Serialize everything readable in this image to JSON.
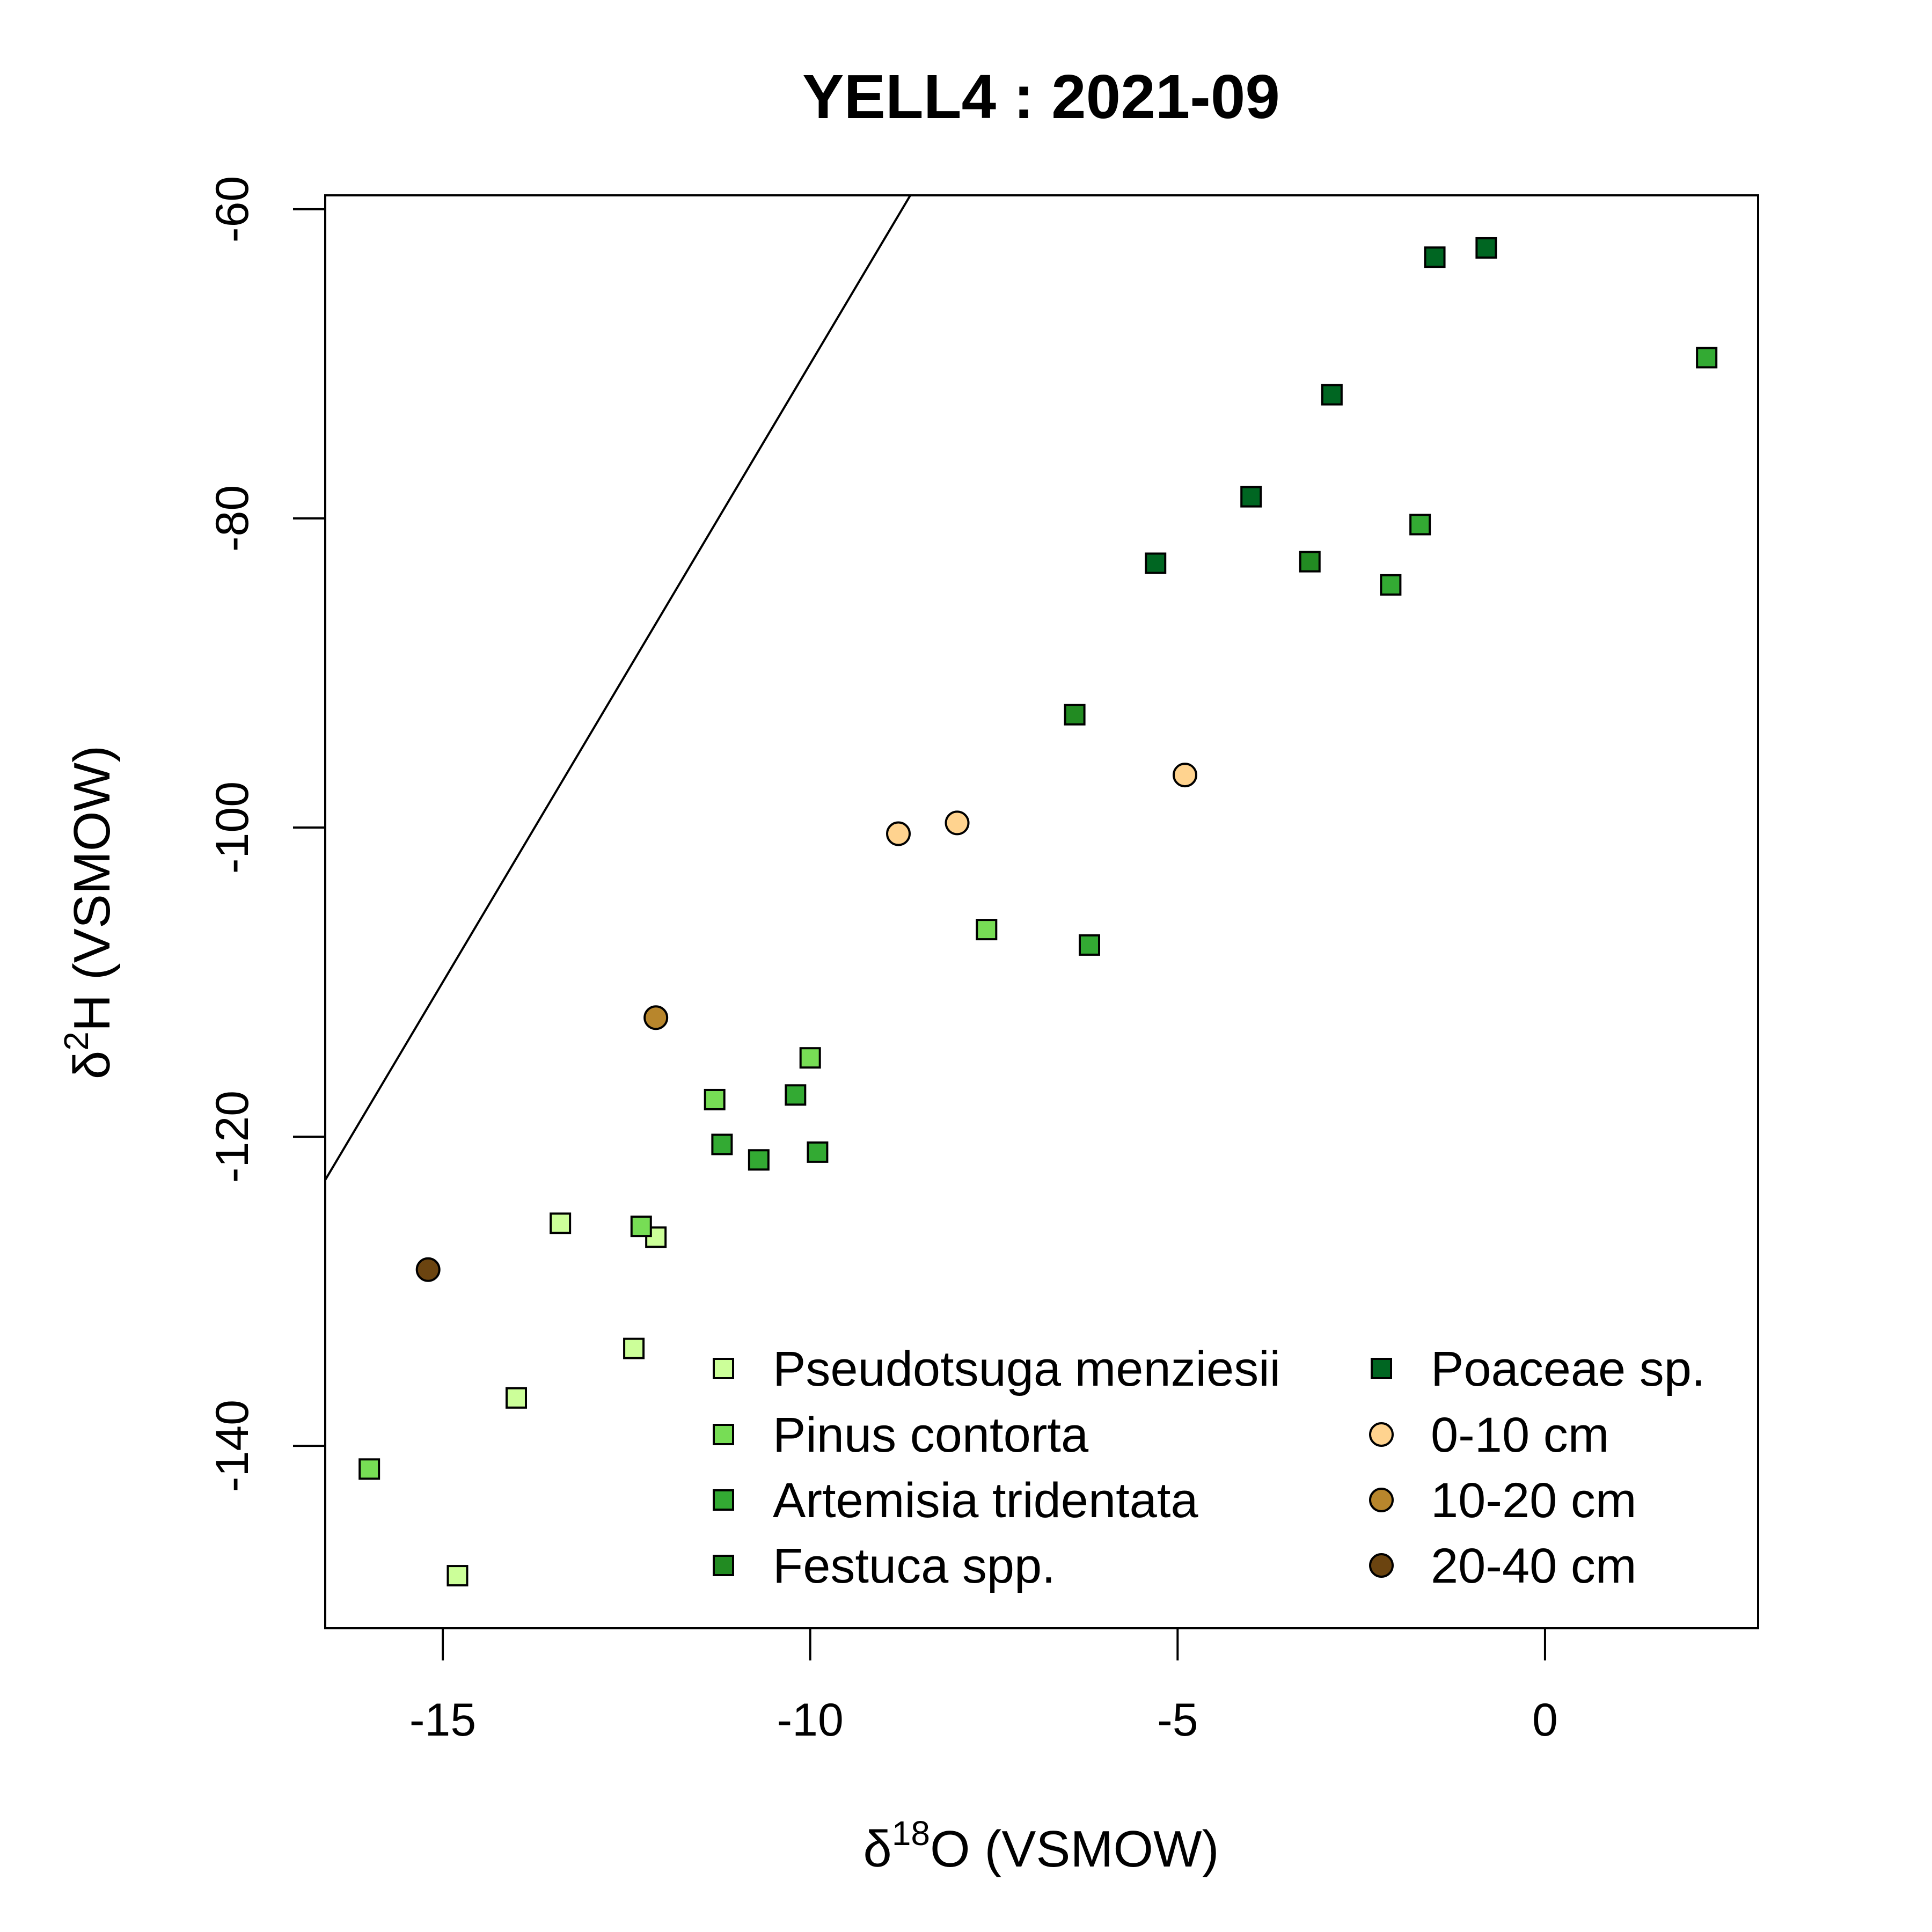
{
  "chart_data": {
    "type": "scatter",
    "title": "YELL4 : 2021-09",
    "xlabel": {
      "main": "δ",
      "sup": "18",
      "rest": "O (VSMOW)"
    },
    "ylabel": {
      "main": "δ",
      "sup": "2",
      "rest": "H (VSMOW)"
    },
    "xlim": [
      -16.6,
      2.9
    ],
    "ylim": [
      -151.8,
      -59.1
    ],
    "x_ticks": [
      {
        "value": -15,
        "label": "-15"
      },
      {
        "value": -10,
        "label": "-10"
      },
      {
        "value": -5,
        "label": "-5"
      },
      {
        "value": 0,
        "label": "0"
      }
    ],
    "y_ticks": [
      {
        "value": -60,
        "label": "-60"
      },
      {
        "value": -80,
        "label": "-80"
      },
      {
        "value": -100,
        "label": "-100"
      },
      {
        "value": -120,
        "label": "-120"
      },
      {
        "value": -140,
        "label": "-140"
      }
    ],
    "grid": false,
    "legend_position": "bottom-right",
    "reference_line": {
      "slope": 8,
      "intercept": 10
    },
    "series": [
      {
        "name": "Pseudotsuga menziesii",
        "marker": "square",
        "color": "#ccff99",
        "points": [
          [
            -13.4,
            -125.6
          ],
          [
            -12.1,
            -126.5
          ],
          [
            -12.4,
            -133.7
          ],
          [
            -14.0,
            -136.9
          ],
          [
            -14.8,
            -148.4
          ]
        ]
      },
      {
        "name": "Pinus contorta",
        "marker": "square",
        "color": "#77dd55",
        "points": [
          [
            -16.0,
            -141.5
          ],
          [
            -12.3,
            -125.8
          ],
          [
            -11.3,
            -117.6
          ],
          [
            -10.0,
            -114.9
          ],
          [
            -7.6,
            -106.6
          ]
        ]
      },
      {
        "name": "Artemisia tridentata",
        "marker": "square",
        "color": "#33aa33",
        "points": [
          [
            -11.2,
            -120.5
          ],
          [
            -10.7,
            -121.5
          ],
          [
            -10.2,
            -117.3
          ],
          [
            -9.9,
            -121.0
          ],
          [
            -6.2,
            -107.6
          ],
          [
            -2.1,
            -84.3
          ],
          [
            -1.7,
            -80.4
          ],
          [
            2.2,
            -69.6
          ]
        ]
      },
      {
        "name": "Festuca spp.",
        "marker": "square",
        "color": "#228b22",
        "points": [
          [
            -6.4,
            -92.7
          ],
          [
            -3.2,
            -82.8
          ]
        ]
      },
      {
        "name": "Poaceae sp.",
        "marker": "square",
        "color": "#006622",
        "points": [
          [
            -5.3,
            -82.9
          ],
          [
            -4.0,
            -78.6
          ],
          [
            -2.9,
            -72.0
          ],
          [
            -1.5,
            -63.1
          ],
          [
            -0.8,
            -62.5
          ]
        ]
      },
      {
        "name": "0-10 cm",
        "marker": "circle",
        "color": "#ffd38f",
        "points": [
          [
            -8.8,
            -100.4
          ],
          [
            -8.0,
            -99.7
          ],
          [
            -4.9,
            -96.6
          ]
        ]
      },
      {
        "name": "10-20 cm",
        "marker": "circle",
        "color": "#b8862c",
        "points": [
          [
            -12.1,
            -112.3
          ]
        ]
      },
      {
        "name": "20-40 cm",
        "marker": "circle",
        "color": "#6b4410",
        "points": [
          [
            -15.2,
            -128.6
          ]
        ]
      }
    ]
  }
}
